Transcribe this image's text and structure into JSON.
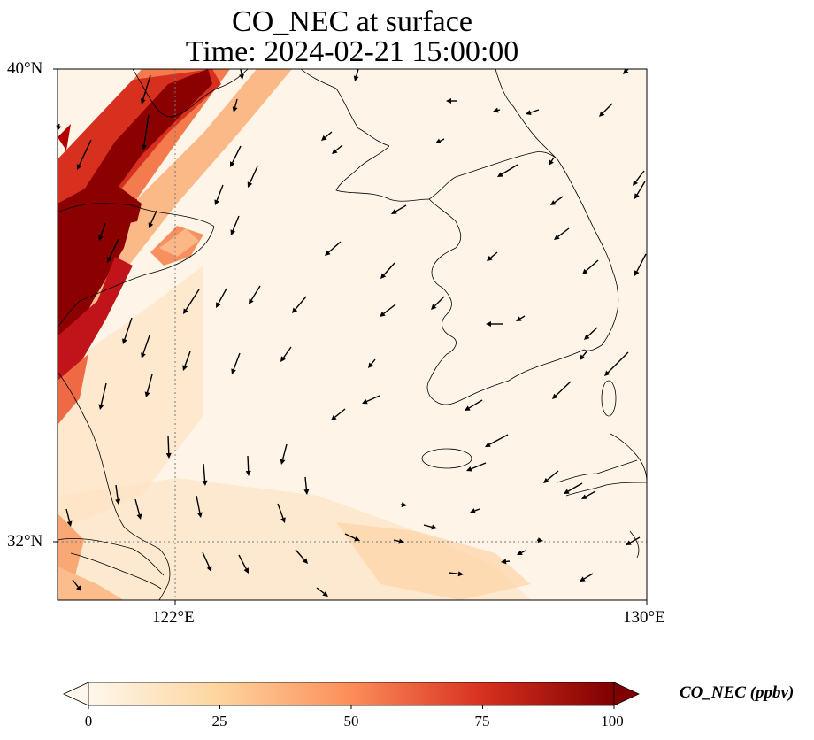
{
  "title_line1": "CO_NEC at surface",
  "title_line2": "Time: 2024-02-21 15:00:00",
  "axes": {
    "lat_ticks": [
      {
        "value": 40,
        "label": "40°N"
      },
      {
        "value": 32,
        "label": "32°N"
      }
    ],
    "lon_ticks": [
      {
        "value": 122,
        "label": "122°E"
      },
      {
        "value": 130,
        "label": "130°E"
      }
    ],
    "lon_range": [
      120,
      130
    ],
    "lat_range": [
      31,
      40
    ],
    "gridlines": "dotted at 122°E and 32°N"
  },
  "colorbar": {
    "label": "CO_NEC (ppbv)",
    "ticks": [
      "0",
      "25",
      "50",
      "75",
      "100"
    ],
    "range": [
      0,
      100
    ],
    "colormap": "OrRd",
    "extend": "both"
  },
  "colors": {
    "background_low": "#fff6e9",
    "plume_high": "#7f0000",
    "plume_mid": "#d7301f",
    "plume_light": "#fdcc8a",
    "coastline": "#000000",
    "arrow": "#000000"
  },
  "plume_description_value": "high concentration band along the NW corner (>100 ppbv), diffuse light band toward SE"
}
